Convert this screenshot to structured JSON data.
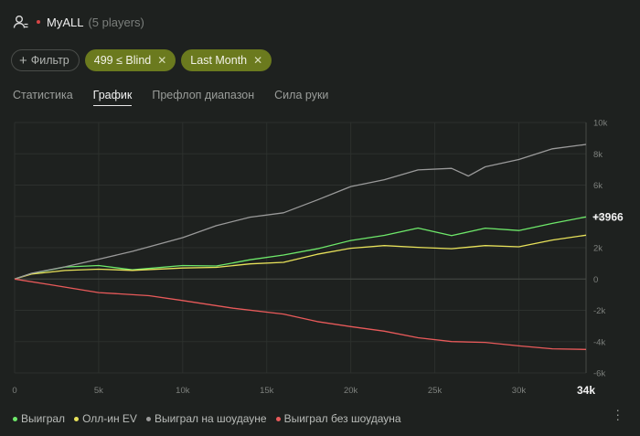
{
  "header": {
    "title": "MyALL",
    "players": "(5 players)",
    "dot_color": "#d64545"
  },
  "filters": {
    "add_label": "Фильтр",
    "chips": [
      {
        "label": "499 ≤ Blind"
      },
      {
        "label": "Last Month"
      }
    ]
  },
  "tabs": [
    {
      "label": "Статистика",
      "active": false
    },
    {
      "label": "График",
      "active": true
    },
    {
      "label": "Префлоп диапазон",
      "active": false
    },
    {
      "label": "Сила руки",
      "active": false
    }
  ],
  "legend": [
    {
      "label": "Выиграл",
      "color": "#6ee86a"
    },
    {
      "label": "Олл-ин EV",
      "color": "#e8e25a"
    },
    {
      "label": "Выиграл на шоудауне",
      "color": "#9a9a9a"
    },
    {
      "label": "Выиграл без шоудауна",
      "color": "#e85a5a"
    }
  ],
  "chart_data": {
    "type": "line",
    "end_label": "+3966",
    "x_end_label": "34k",
    "xlim": [
      0,
      34000
    ],
    "ylim": [
      -6000,
      10000
    ],
    "x_ticks": [
      0,
      5000,
      10000,
      15000,
      20000,
      25000,
      30000
    ],
    "x_tick_labels": [
      "0",
      "5k",
      "10k",
      "15k",
      "20k",
      "25k",
      "30k"
    ],
    "y_ticks": [
      10000,
      8000,
      6000,
      4000,
      2000,
      0,
      -2000,
      -4000,
      -6000
    ],
    "y_tick_labels": [
      "10k",
      "8k",
      "6k",
      "4k",
      "2k",
      "0",
      "-2k",
      "-4k",
      "-6k"
    ],
    "series": [
      {
        "name": "Выиграл",
        "color": "#6ee86a",
        "x": [
          0,
          1000,
          3000,
          5000,
          7000,
          10000,
          12000,
          14000,
          16000,
          18000,
          20000,
          22000,
          24000,
          26000,
          28000,
          30000,
          32000,
          34000
        ],
        "y": [
          0,
          400,
          700,
          900,
          600,
          800,
          900,
          1200,
          1500,
          2000,
          2400,
          2800,
          3300,
          2700,
          3300,
          3100,
          3500,
          3966
        ]
      },
      {
        "name": "Олл-ин EV",
        "color": "#e8e25a",
        "x": [
          0,
          1000,
          3000,
          5000,
          7000,
          10000,
          12000,
          14000,
          16000,
          18000,
          20000,
          22000,
          24000,
          26000,
          28000,
          30000,
          32000,
          34000
        ],
        "y": [
          0,
          300,
          500,
          700,
          500,
          700,
          800,
          900,
          1100,
          1600,
          1900,
          2200,
          2000,
          1900,
          2200,
          2000,
          2500,
          2800
        ]
      },
      {
        "name": "Выиграл на шоудауне",
        "color": "#9a9a9a",
        "x": [
          0,
          1000,
          3000,
          5000,
          7000,
          10000,
          12000,
          14000,
          16000,
          18000,
          20000,
          22000,
          24000,
          26000,
          27000,
          28000,
          30000,
          32000,
          34000
        ],
        "y": [
          0,
          300,
          800,
          1300,
          1700,
          2700,
          3400,
          3900,
          4300,
          5000,
          5900,
          6400,
          6900,
          7100,
          6600,
          7100,
          7700,
          8300,
          8600
        ]
      },
      {
        "name": "Выиграл без шоудауна",
        "color": "#e85a5a",
        "x": [
          0,
          2000,
          5000,
          8000,
          10000,
          13000,
          16000,
          18000,
          20000,
          22000,
          24000,
          26000,
          28000,
          30000,
          32000,
          34000
        ],
        "y": [
          0,
          -400,
          -800,
          -1100,
          -1400,
          -1800,
          -2300,
          -2700,
          -3000,
          -3400,
          -3700,
          -4000,
          -4100,
          -4200,
          -4500,
          -4500
        ]
      }
    ]
  }
}
